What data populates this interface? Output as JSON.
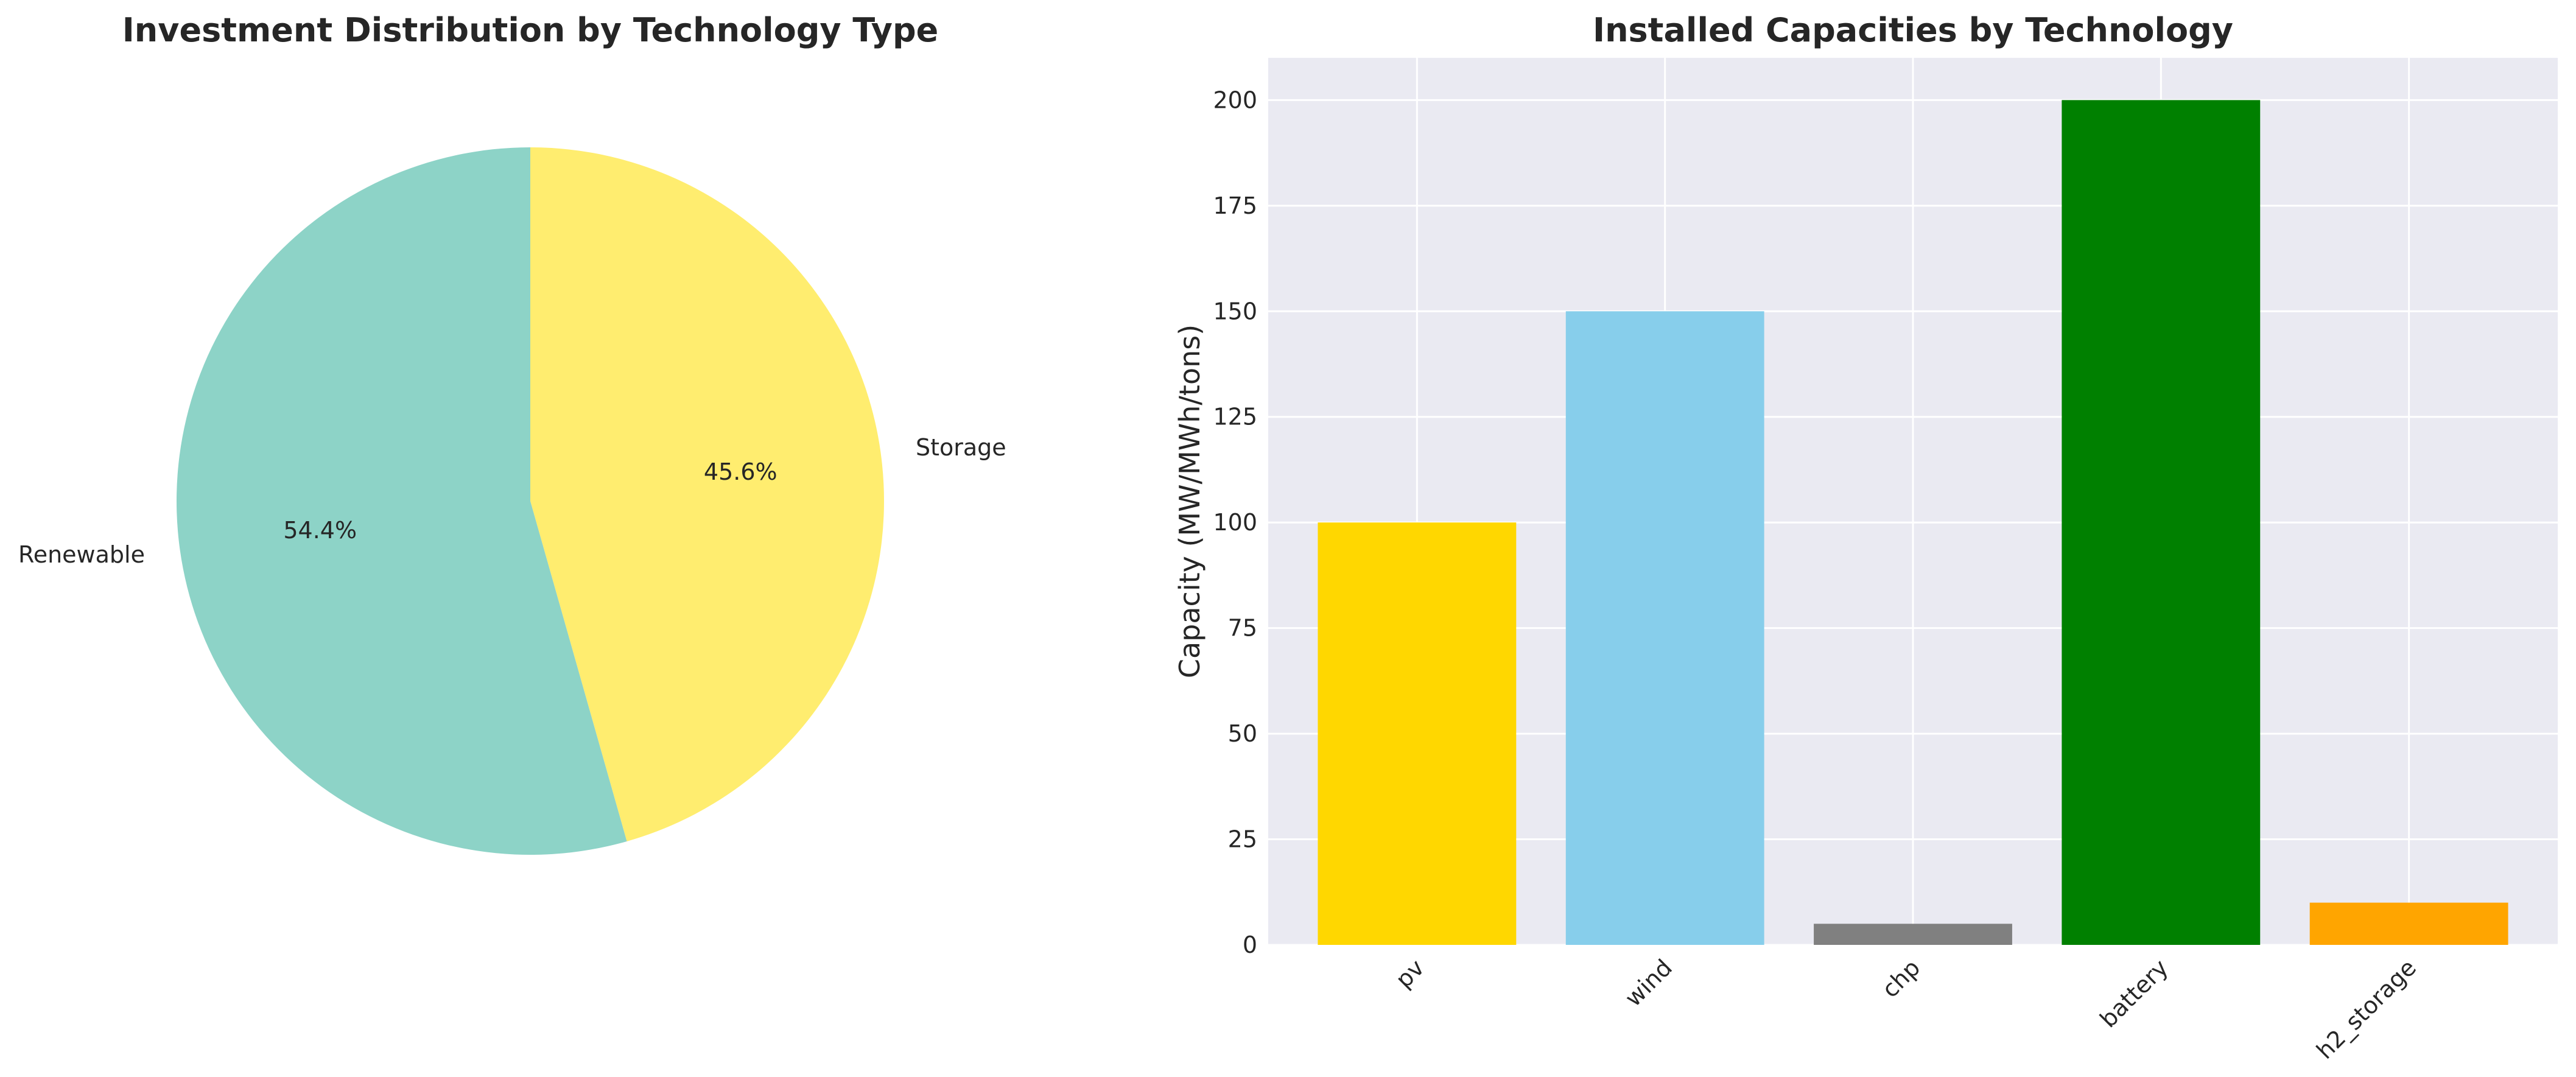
{
  "chart_data": [
    {
      "type": "pie",
      "title": "Investment Distribution by Technology Type",
      "slices": [
        {
          "label": "Storage",
          "value": 45.6,
          "pct_label": "45.6%",
          "color": "#ffed6f"
        },
        {
          "label": "Renewable",
          "value": 54.4,
          "pct_label": "54.4%",
          "color": "#8dd3c7"
        }
      ],
      "start_angle_deg": 90,
      "direction": "clockwise"
    },
    {
      "type": "bar",
      "title": "Installed Capacities by Technology",
      "xlabel": "",
      "ylabel": "Capacity (MW/MWh/tons)",
      "categories": [
        "pv",
        "wind",
        "chp",
        "battery",
        "h2_storage"
      ],
      "values": [
        100,
        150,
        5,
        200,
        10
      ],
      "colors": [
        "#ffd700",
        "#87ceeb",
        "#808080",
        "#008000",
        "#ffa500"
      ],
      "ylim": [
        0,
        210
      ],
      "yticks": [
        0,
        25,
        50,
        75,
        100,
        125,
        150,
        175,
        200
      ],
      "grid": true,
      "background": "#eaeaf2"
    }
  ]
}
